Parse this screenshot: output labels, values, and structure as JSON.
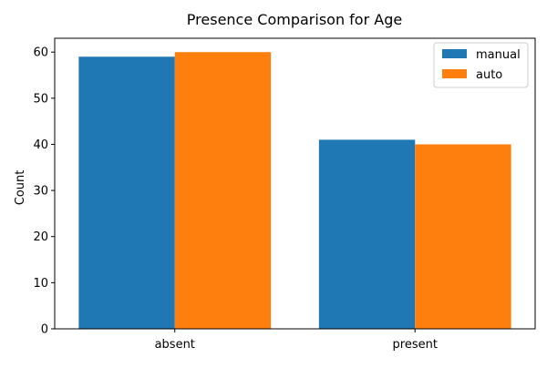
{
  "chart_data": {
    "type": "bar",
    "title": "Presence Comparison for Age",
    "xlabel": "",
    "ylabel": "Count",
    "categories": [
      "absent",
      "present"
    ],
    "series": [
      {
        "name": "manual",
        "values": [
          59,
          41
        ],
        "color": "#1f77b4"
      },
      {
        "name": "auto",
        "values": [
          60,
          40
        ],
        "color": "#ff7f0e"
      }
    ],
    "ylim": [
      0,
      63
    ],
    "yticks": [
      0,
      10,
      20,
      30,
      40,
      50,
      60
    ],
    "grid": false,
    "legend_position": "top-right"
  }
}
